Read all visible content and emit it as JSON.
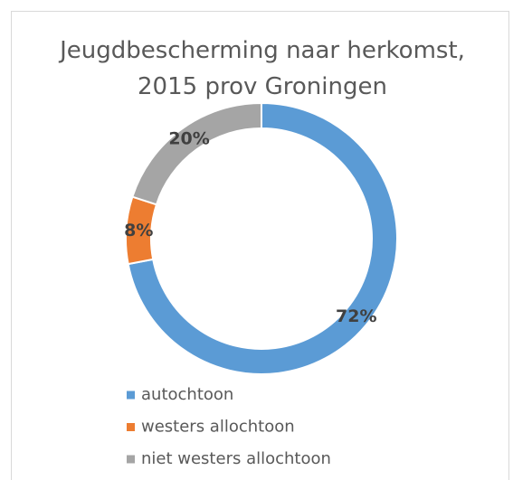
{
  "chart_data": {
    "type": "donut",
    "title": "Jeugdbescherming naar herkomst, 2015 prov Groningen",
    "categories": [
      "autochtoon",
      "westers allochtoon",
      "niet westers allochtoon"
    ],
    "values": [
      72,
      8,
      20
    ],
    "value_labels": [
      "72%",
      "8%",
      "20%"
    ],
    "colors": [
      "#5b9bd5",
      "#ed7d31",
      "#a5a5a5"
    ],
    "legend": "bottom-left"
  }
}
